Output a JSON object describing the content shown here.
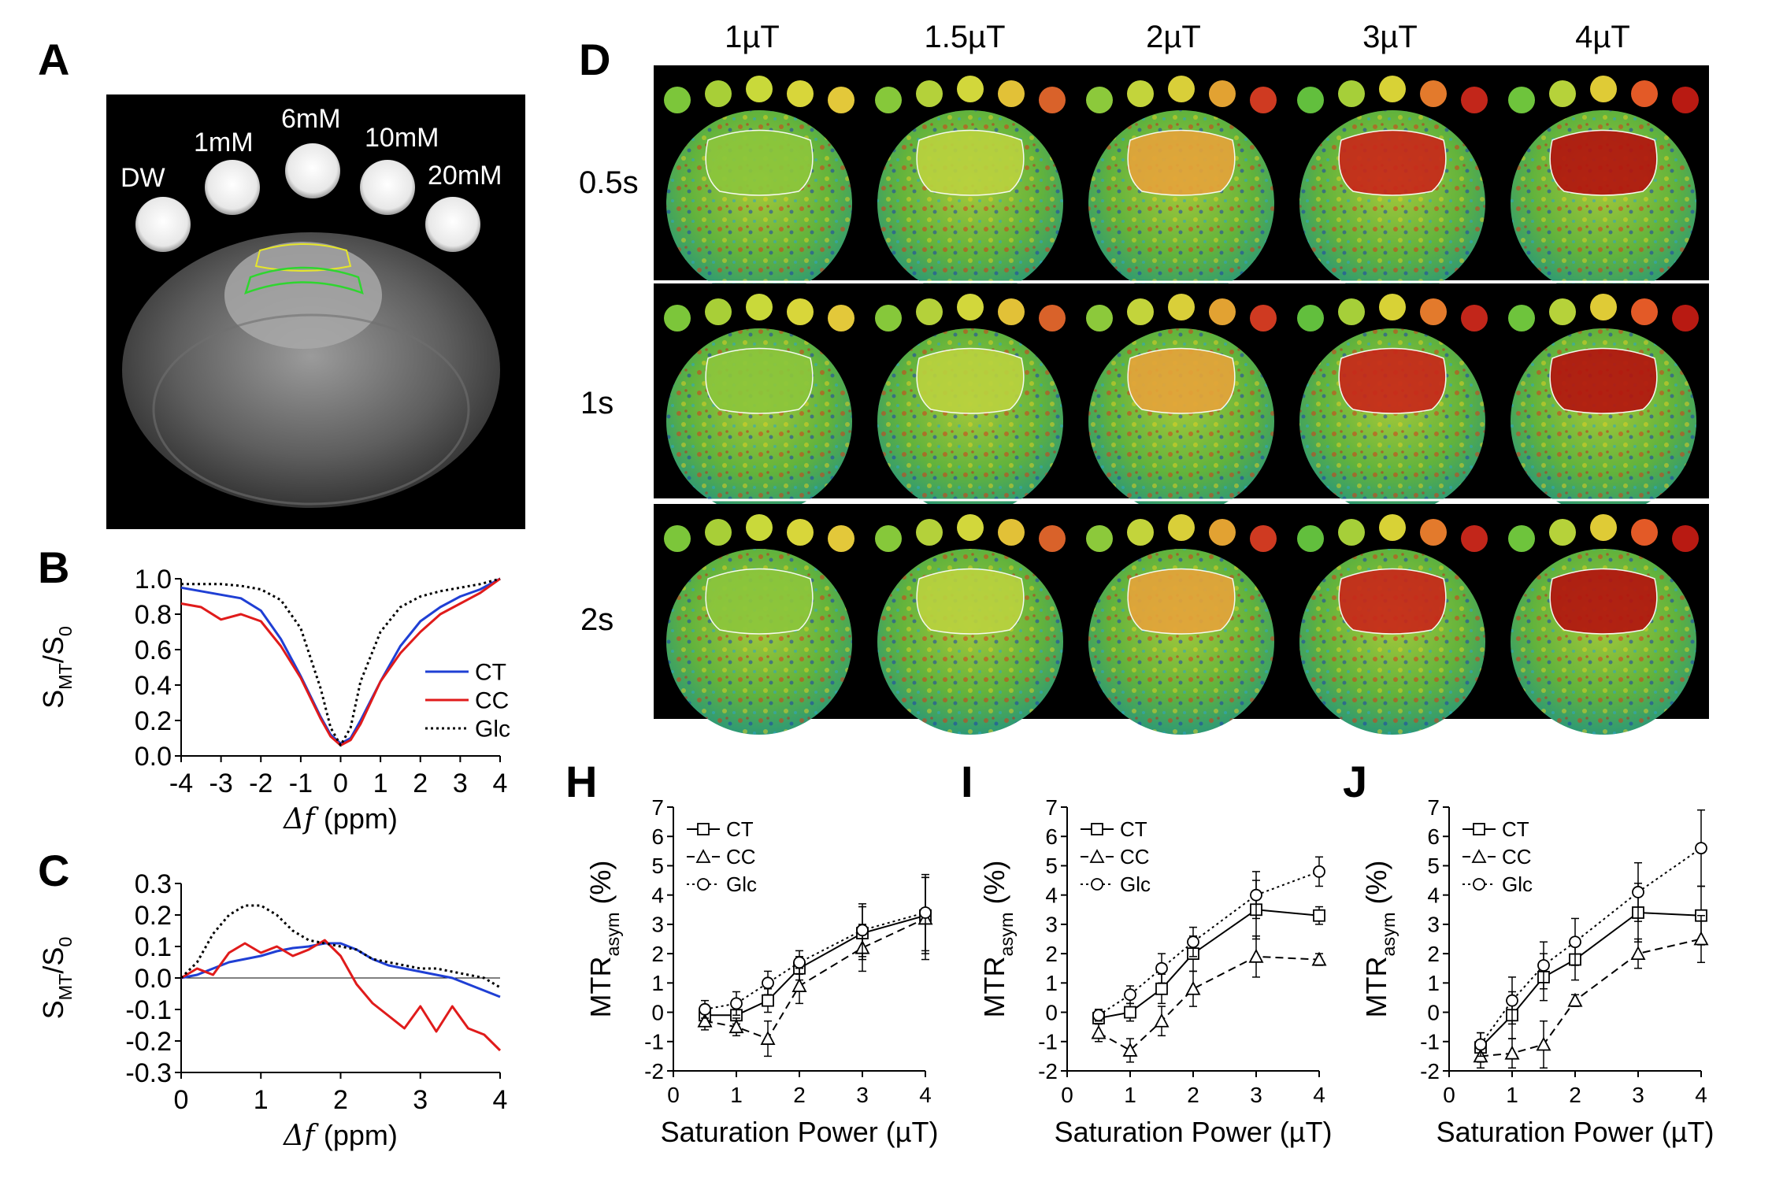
{
  "panel_labels": {
    "A": "A",
    "B": "B",
    "C": "C",
    "D": "D",
    "H": "H",
    "I": "I",
    "J": "J"
  },
  "panelA": {
    "phantom_labels": [
      "DW",
      "1mM",
      "6mM",
      "10mM",
      "20mM"
    ]
  },
  "panelD": {
    "column_labels": [
      "1µT",
      "1.5µT",
      "2µT",
      "3µT",
      "4µT"
    ],
    "row_labels": [
      "0.5s",
      "1s",
      "2s"
    ]
  },
  "colors": {
    "CT": "#1f3fd4",
    "CC": "#e01b1b",
    "Glc": "#000000",
    "map_low": "#0a2a9c",
    "map_mid": "#5fb83a",
    "map_high": "#b8140f"
  },
  "chart_data": [
    {
      "id": "B",
      "type": "line",
      "title": "",
      "xlabel": "Δf (ppm)",
      "ylabel": "S_MT/S_0",
      "xlim": [
        -4,
        4
      ],
      "ylim": [
        0,
        1
      ],
      "xticks": [
        "-4",
        "-3",
        "-2",
        "-1",
        "0",
        "1",
        "2",
        "3",
        "4"
      ],
      "yticks": [
        "0.0",
        "0.2",
        "0.4",
        "0.6",
        "0.8",
        "1.0"
      ],
      "legend": [
        "CT",
        "CC",
        "Glc"
      ],
      "x": [
        -4,
        -3.5,
        -3,
        -2.5,
        -2,
        -1.5,
        -1,
        -0.5,
        -0.25,
        0,
        0.25,
        0.5,
        1,
        1.5,
        2,
        2.5,
        3,
        3.5,
        4
      ],
      "series": [
        {
          "name": "CT",
          "style": "solid",
          "values": [
            0.95,
            0.93,
            0.91,
            0.89,
            0.82,
            0.66,
            0.45,
            0.22,
            0.12,
            0.07,
            0.1,
            0.2,
            0.42,
            0.62,
            0.76,
            0.84,
            0.9,
            0.94,
            1.0
          ]
        },
        {
          "name": "CC",
          "style": "solid",
          "values": [
            0.86,
            0.84,
            0.77,
            0.8,
            0.76,
            0.62,
            0.44,
            0.21,
            0.11,
            0.06,
            0.09,
            0.18,
            0.42,
            0.58,
            0.7,
            0.8,
            0.86,
            0.92,
            1.0
          ]
        },
        {
          "name": "Glc",
          "style": "dotted",
          "values": [
            0.97,
            0.97,
            0.97,
            0.96,
            0.94,
            0.88,
            0.72,
            0.38,
            0.16,
            0.06,
            0.16,
            0.42,
            0.7,
            0.84,
            0.9,
            0.93,
            0.95,
            0.97,
            1.0
          ]
        }
      ]
    },
    {
      "id": "C",
      "type": "line",
      "title": "",
      "xlabel": "Δf (ppm)",
      "ylabel": "S_MT/S_0",
      "xlim": [
        0,
        4
      ],
      "ylim": [
        -0.3,
        0.3
      ],
      "xticks": [
        "0",
        "1",
        "2",
        "3",
        "4"
      ],
      "yticks": [
        "-0.3",
        "-0.2",
        "-0.1",
        "0.0",
        "0.1",
        "0.2",
        "0.3"
      ],
      "x": [
        0,
        0.2,
        0.4,
        0.6,
        0.8,
        1,
        1.2,
        1.4,
        1.6,
        1.8,
        2,
        2.2,
        2.4,
        2.6,
        2.8,
        3,
        3.2,
        3.4,
        3.6,
        3.8,
        4
      ],
      "series": [
        {
          "name": "CT",
          "style": "solid",
          "values": [
            0,
            0.01,
            0.03,
            0.05,
            0.06,
            0.07,
            0.085,
            0.095,
            0.1,
            0.11,
            0.11,
            0.09,
            0.06,
            0.04,
            0.03,
            0.02,
            0.01,
            0,
            -0.02,
            -0.04,
            -0.06
          ]
        },
        {
          "name": "CC",
          "style": "solid",
          "values": [
            0,
            0.03,
            0.01,
            0.08,
            0.11,
            0.08,
            0.1,
            0.07,
            0.09,
            0.12,
            0.07,
            -0.02,
            -0.08,
            -0.12,
            -0.16,
            -0.09,
            -0.17,
            -0.09,
            -0.16,
            -0.18,
            -0.23
          ]
        },
        {
          "name": "Glc",
          "style": "dotted",
          "values": [
            0,
            0.05,
            0.14,
            0.2,
            0.23,
            0.23,
            0.2,
            0.15,
            0.12,
            0.11,
            0.1,
            0.09,
            0.06,
            0.05,
            0.04,
            0.03,
            0.03,
            0.02,
            0.01,
            0,
            -0.03
          ]
        }
      ]
    },
    {
      "id": "H",
      "type": "line",
      "xlabel": "Saturation Power (µT)",
      "ylabel": "MTR_asym (%)",
      "xlim": [
        0,
        4
      ],
      "ylim": [
        -2,
        7
      ],
      "xticks": [
        "0",
        "1",
        "2",
        "3",
        "4"
      ],
      "yticks": [
        "-2",
        "-1",
        "0",
        "1",
        "2",
        "3",
        "4",
        "5",
        "6",
        "7"
      ],
      "legend": [
        "CT",
        "CC",
        "Glc"
      ],
      "x": [
        0.5,
        1,
        1.5,
        2,
        3,
        4
      ],
      "series": [
        {
          "name": "CT",
          "style": "solid",
          "marker": "square",
          "values": [
            -0.1,
            -0.1,
            0.4,
            1.5,
            2.7,
            3.3
          ],
          "errors": [
            0.3,
            0.3,
            0.4,
            0.4,
            0.9,
            1.3
          ]
        },
        {
          "name": "CC",
          "style": "dashed",
          "marker": "triangle",
          "values": [
            -0.3,
            -0.5,
            -0.9,
            0.9,
            2.2,
            3.2
          ],
          "errors": [
            0.3,
            0.3,
            0.6,
            0.6,
            0.8,
            1.4
          ]
        },
        {
          "name": "Glc",
          "style": "dotted",
          "marker": "circle",
          "values": [
            0.1,
            0.3,
            1.0,
            1.7,
            2.8,
            3.4
          ],
          "errors": [
            0.3,
            0.4,
            0.4,
            0.4,
            0.9,
            1.3
          ]
        }
      ]
    },
    {
      "id": "I",
      "type": "line",
      "xlabel": "Saturation Power (µT)",
      "ylabel": "MTR_asym (%)",
      "xlim": [
        0,
        4
      ],
      "ylim": [
        -2,
        7
      ],
      "xticks": [
        "0",
        "1",
        "2",
        "3",
        "4"
      ],
      "yticks": [
        "-2",
        "-1",
        "0",
        "1",
        "2",
        "3",
        "4",
        "5",
        "6",
        "7"
      ],
      "legend": [
        "CT",
        "CC",
        "Glc"
      ],
      "x": [
        0.5,
        1,
        1.5,
        2,
        3,
        4
      ],
      "series": [
        {
          "name": "CT",
          "style": "solid",
          "marker": "square",
          "values": [
            -0.2,
            0.0,
            0.8,
            2.0,
            3.5,
            3.3
          ],
          "errors": [
            0.2,
            0.3,
            0.5,
            0.6,
            1.0,
            0.3
          ]
        },
        {
          "name": "CC",
          "style": "dashed",
          "marker": "triangle",
          "values": [
            -0.7,
            -1.3,
            -0.3,
            0.8,
            1.9,
            1.8
          ],
          "errors": [
            0.3,
            0.4,
            0.5,
            0.6,
            0.7,
            0.2
          ]
        },
        {
          "name": "Glc",
          "style": "dotted",
          "marker": "circle",
          "values": [
            -0.1,
            0.6,
            1.5,
            2.4,
            4.0,
            4.8
          ],
          "errors": [
            0.2,
            0.3,
            0.5,
            0.5,
            0.8,
            0.5
          ]
        }
      ]
    },
    {
      "id": "J",
      "type": "line",
      "xlabel": "Saturation Power (µT)",
      "ylabel": "MTR_asym (%)",
      "xlim": [
        0,
        4
      ],
      "ylim": [
        -2,
        7
      ],
      "xticks": [
        "0",
        "1",
        "2",
        "3",
        "4"
      ],
      "yticks": [
        "-2",
        "-1",
        "0",
        "1",
        "2",
        "3",
        "4",
        "5",
        "6",
        "7"
      ],
      "legend": [
        "CT",
        "CC",
        "Glc"
      ],
      "x": [
        0.5,
        1,
        1.5,
        2,
        3,
        4
      ],
      "series": [
        {
          "name": "CT",
          "style": "solid",
          "marker": "square",
          "values": [
            -1.2,
            -0.1,
            1.2,
            1.8,
            3.4,
            3.3
          ],
          "errors": [
            0.5,
            0.8,
            0.8,
            0.7,
            1.0,
            1.0
          ]
        },
        {
          "name": "CC",
          "style": "dashed",
          "marker": "triangle",
          "values": [
            -1.5,
            -1.4,
            -1.1,
            0.4,
            2.0,
            2.5
          ],
          "errors": [
            0.4,
            0.5,
            0.8,
            0.2,
            0.5,
            0.8
          ]
        },
        {
          "name": "Glc",
          "style": "dotted",
          "marker": "circle",
          "values": [
            -1.1,
            0.4,
            1.6,
            2.4,
            4.1,
            5.6
          ],
          "errors": [
            0.4,
            0.8,
            0.8,
            0.8,
            1.0,
            1.3
          ]
        }
      ]
    }
  ]
}
